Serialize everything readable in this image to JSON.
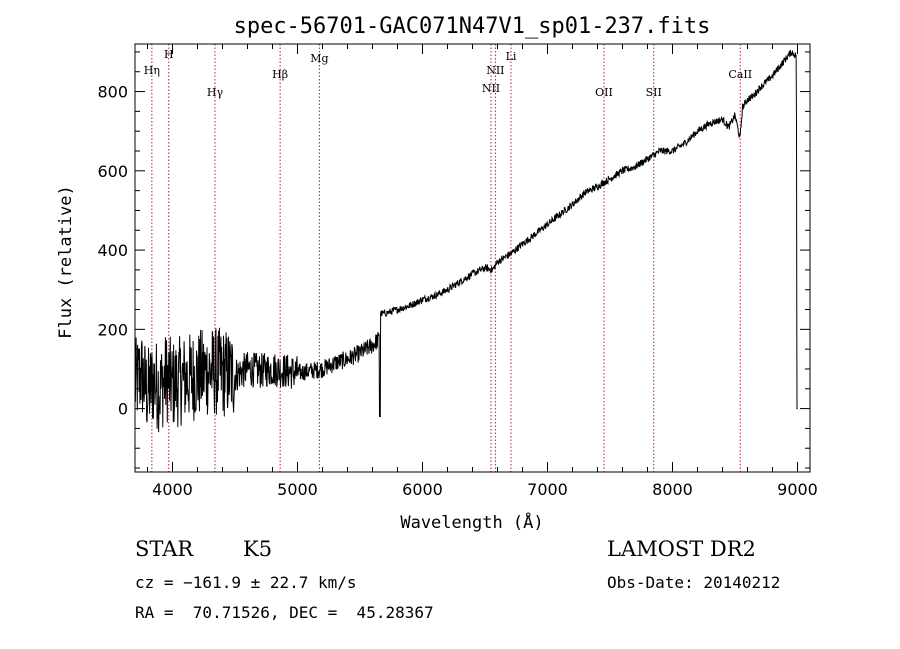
{
  "chart_data": {
    "type": "line",
    "title": "spec-56701-GAC071N47V1_sp01-237.fits",
    "xlabel": "Wavelength (Å)",
    "ylabel": "Flux (relative)",
    "xlim": [
      3700,
      9100
    ],
    "ylim": [
      -160,
      920
    ],
    "xticks": [
      4000,
      5000,
      6000,
      7000,
      8000,
      9000
    ],
    "yticks": [
      0,
      200,
      400,
      600,
      800
    ],
    "grid": false,
    "line_color": "#000000",
    "marker_color": "#b22222",
    "lines": [
      {
        "label": "Hη",
        "wavelength": 3835
      },
      {
        "label": "H",
        "wavelength": 3970
      },
      {
        "label": "Hγ",
        "wavelength": 4340
      },
      {
        "label": "Hβ",
        "wavelength": 4861
      },
      {
        "label": "Mg",
        "wavelength": 5175
      },
      {
        "label": "NII",
        "wavelength": 6548
      },
      {
        "label": "NII",
        "wavelength": 6583
      },
      {
        "label": "Li",
        "wavelength": 6708
      },
      {
        "label": "OII",
        "wavelength": 7452
      },
      {
        "label": "SII",
        "wavelength": 7850
      },
      {
        "label": "CaII",
        "wavelength": 8542
      }
    ],
    "series": [
      {
        "x": [
          3700,
          3750,
          3800,
          3850,
          3900,
          3950,
          4000,
          4100,
          4200,
          4300,
          4400,
          4500,
          4600,
          4700,
          4800,
          4900,
          5000,
          5100,
          5200,
          5300,
          5400,
          5500,
          5600,
          5650,
          5660,
          5700,
          5800,
          5900,
          6000,
          6100,
          6200,
          6300,
          6400,
          6500,
          6560,
          6600,
          6700,
          6800,
          6900,
          7000,
          7100,
          7200,
          7300,
          7400,
          7500,
          7600,
          7700,
          7800,
          7900,
          8000,
          8100,
          8200,
          8300,
          8400,
          8450,
          8500,
          8540,
          8560,
          8600,
          8650,
          8700,
          8800,
          8900,
          8950,
          8990
        ],
        "y": [
          60,
          90,
          40,
          70,
          50,
          80,
          60,
          75,
          85,
          95,
          90,
          85,
          100,
          95,
          100,
          95,
          90,
          95,
          100,
          115,
          125,
          140,
          160,
          175,
          240,
          240,
          250,
          260,
          275,
          285,
          300,
          320,
          340,
          355,
          350,
          370,
          390,
          415,
          440,
          465,
          490,
          515,
          545,
          560,
          580,
          600,
          610,
          630,
          650,
          650,
          670,
          700,
          720,
          730,
          710,
          740,
          680,
          760,
          780,
          790,
          810,
          840,
          880,
          900,
          890
        ]
      }
    ]
  },
  "info": {
    "class_label": "STAR",
    "subclass": "K5",
    "survey": "LAMOST DR2",
    "velocity": "cz = −161.9 ± 22.7 km/s",
    "obs_date": "Obs-Date: 20140212",
    "coords": "RA =  70.71526, DEC =  45.28367"
  }
}
